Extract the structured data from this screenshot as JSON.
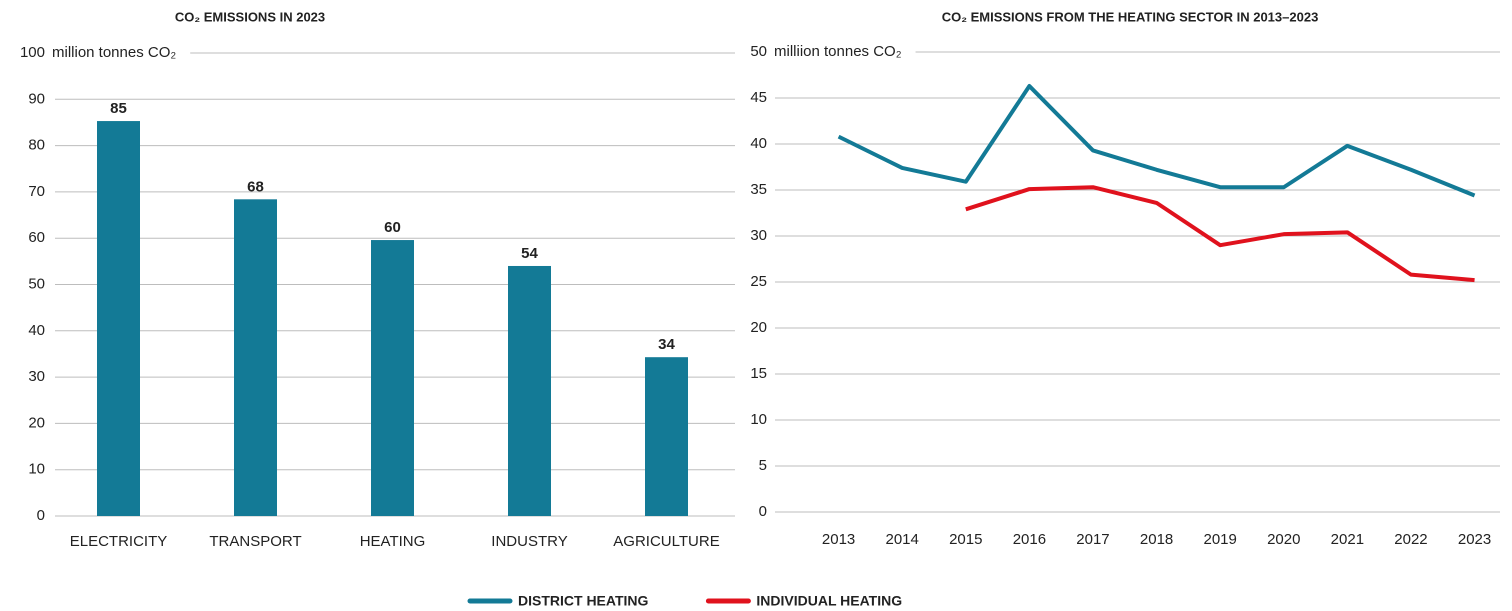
{
  "chart_data": [
    {
      "type": "bar",
      "title": "CO₂ EMISSIONS IN 2023",
      "y_label": "million tonnes CO₂",
      "categories": [
        "ELECTRICITY",
        "TRANSPORT",
        "HEATING",
        "INDUSTRY",
        "AGRICULTURE"
      ],
      "values": [
        85.3,
        68.4,
        59.6,
        54.0,
        34.3
      ],
      "value_labels": [
        "85",
        "68",
        "60",
        "54",
        "34"
      ],
      "color": "#137a96",
      "ylim": [
        0,
        100
      ],
      "yticks": [
        0,
        10,
        20,
        30,
        40,
        50,
        60,
        70,
        80,
        90,
        100
      ],
      "grid": true
    },
    {
      "type": "line",
      "title": "CO₂ EMISSIONS FROM THE HEATING SECTOR IN 2013–2023",
      "y_label": "milliion tonnes CO₂",
      "x": [
        2013,
        2014,
        2015,
        2016,
        2017,
        2018,
        2019,
        2020,
        2021,
        2022,
        2023
      ],
      "xlim": [
        2012,
        2023.4
      ],
      "xticks": [
        2013,
        2014,
        2015,
        2016,
        2017,
        2018,
        2019,
        2020,
        2021,
        2022,
        2023
      ],
      "series": [
        {
          "name": "DISTRICT HEATING",
          "color": "#137a96",
          "values": [
            40.8,
            37.4,
            35.9,
            46.3,
            39.3,
            37.2,
            35.3,
            35.3,
            39.8,
            37.2,
            34.4
          ]
        },
        {
          "name": "INDIVIDUAL HEATING",
          "color": "#e0121d",
          "values": [
            null,
            null,
            32.9,
            35.1,
            35.3,
            33.6,
            29.0,
            30.2,
            30.4,
            25.8,
            25.2
          ]
        }
      ],
      "ylim": [
        0,
        50
      ],
      "yticks": [
        0,
        5,
        10,
        15,
        20,
        25,
        30,
        35,
        40,
        45,
        50
      ],
      "grid": true,
      "legend": "bottom"
    }
  ]
}
